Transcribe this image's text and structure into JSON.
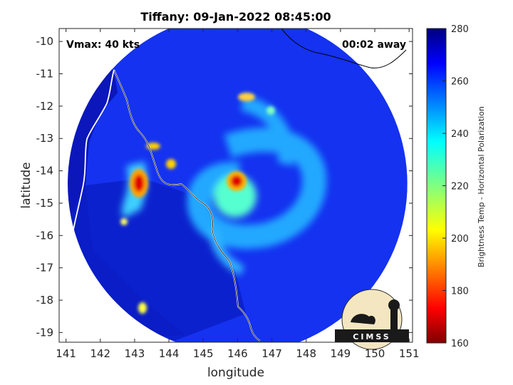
{
  "chart_data": {
    "type": "heatmap",
    "title": "Tiffany: 09-Jan-2022 08:45:00",
    "xlabel": "longitude",
    "ylabel": "latitude",
    "xlim": [
      140.8,
      151.1
    ],
    "ylim": [
      -19.3,
      -9.6
    ],
    "xticks": [
      "141",
      "142",
      "143",
      "144",
      "145",
      "146",
      "147",
      "148",
      "149",
      "150",
      "151"
    ],
    "yticks": [
      "-10",
      "-11",
      "-12",
      "-13",
      "-14",
      "-15",
      "-16",
      "-17",
      "-18",
      "-19"
    ],
    "annotations": {
      "vmax": "Vmax: 40 kts",
      "away": "00:02 away"
    },
    "colorbar": {
      "label": "Brightness Temp - Horizontal Polarization",
      "range": [
        160,
        280
      ],
      "ticks": [
        "160",
        "180",
        "200",
        "220",
        "240",
        "260",
        "280"
      ]
    },
    "swath": {
      "center_lon": 146.0,
      "center_lat": -14.4,
      "radius_deg": 4.95
    },
    "background_value": 265,
    "features": [
      {
        "lon": 146.1,
        "lat": -14.25,
        "value": 178
      },
      {
        "lon": 143.1,
        "lat": -14.4,
        "value": 180
      },
      {
        "lon": 143.6,
        "lat": -13.05,
        "value": 195
      },
      {
        "lon": 143.9,
        "lat": -13.6,
        "value": 200
      },
      {
        "lon": 146.3,
        "lat": -11.5,
        "value": 215
      },
      {
        "lon": 143.3,
        "lat": -18.1,
        "value": 215
      },
      {
        "lon": 142.7,
        "lat": -15.5,
        "value": 215
      }
    ],
    "logo": "CIMSS"
  }
}
